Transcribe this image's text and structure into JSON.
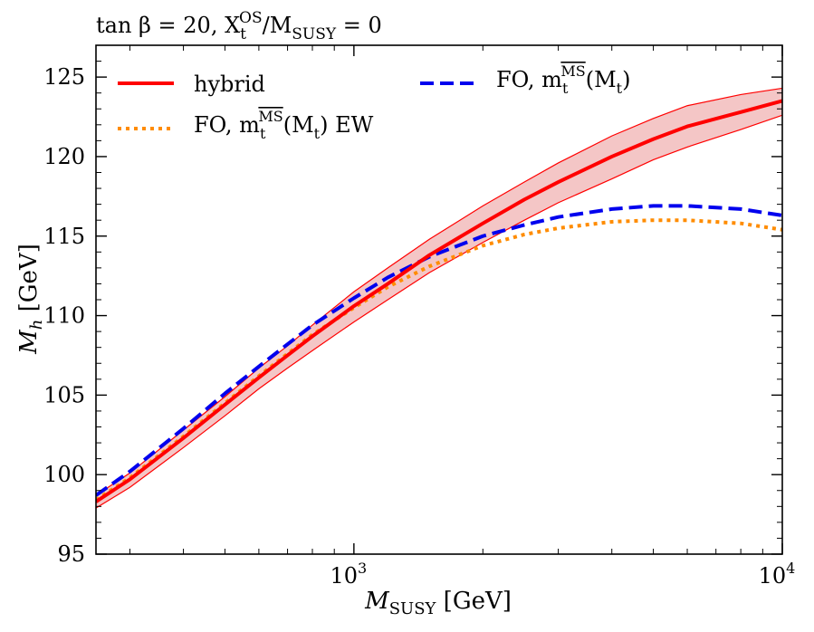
{
  "chart_data": {
    "type": "line",
    "title": "tan β = 20, X",
    "title_sup": "OS",
    "title_sub": "t",
    "title_tail": "/M",
    "title_tail_sub": "SUSY",
    "title_end": " = 0",
    "xlabel": "M",
    "xlabel_sub": "SUSY",
    "xlabel_unit": " [GeV]",
    "ylabel": "M",
    "ylabel_sub": "h",
    "ylabel_unit": " [GeV]",
    "xscale": "log",
    "xlim": [
      250,
      10000
    ],
    "ylim": [
      95,
      127
    ],
    "xticks": [
      {
        "value": 1000,
        "base": "10",
        "exp": "3"
      },
      {
        "value": 10000,
        "base": "10",
        "exp": "4"
      }
    ],
    "yticks": [
      95,
      100,
      105,
      110,
      115,
      120,
      125
    ],
    "grid": false,
    "legend_placement": "top",
    "series": [
      {
        "name": "hybrid",
        "color": "#ff0000",
        "style": "solid",
        "x": [
          250,
          300,
          400,
          500,
          600,
          700,
          800,
          1000,
          1200,
          1500,
          2000,
          2500,
          3000,
          4000,
          5000,
          6000,
          8000,
          10000
        ],
        "y": [
          98.3,
          99.7,
          102.3,
          104.4,
          106.1,
          107.5,
          108.7,
          110.6,
          112.0,
          113.8,
          115.8,
          117.3,
          118.4,
          120.0,
          121.1,
          121.9,
          122.8,
          123.5
        ],
        "band_lower": [
          97.9,
          99.2,
          101.7,
          103.7,
          105.4,
          106.7,
          107.8,
          109.6,
          111.0,
          112.7,
          114.6,
          116.0,
          117.1,
          118.6,
          119.8,
          120.6,
          121.7,
          122.6
        ],
        "band_upper": [
          98.7,
          100.1,
          102.8,
          104.9,
          106.7,
          108.1,
          109.4,
          111.5,
          113.0,
          114.8,
          116.9,
          118.4,
          119.6,
          121.3,
          122.4,
          123.2,
          123.9,
          124.3
        ]
      },
      {
        "name": "FO, m_t^MS(M_t)",
        "color": "#0000ee",
        "style": "dashed",
        "x": [
          250,
          300,
          400,
          500,
          600,
          700,
          800,
          1000,
          1200,
          1500,
          2000,
          2500,
          3000,
          4000,
          5000,
          5500,
          6000,
          8000,
          10000
        ],
        "y": [
          98.7,
          100.2,
          102.9,
          105.1,
          106.8,
          108.2,
          109.4,
          111.1,
          112.4,
          113.7,
          115.0,
          115.7,
          116.2,
          116.7,
          116.9,
          116.9,
          116.9,
          116.7,
          116.3
        ]
      },
      {
        "name": "FO, m_t^MS(M_t) EW",
        "color": "#ff8c00",
        "style": "dotted",
        "x": [
          250,
          300,
          400,
          500,
          600,
          700,
          800,
          1000,
          1200,
          1500,
          2000,
          2500,
          3000,
          4000,
          5000,
          6000,
          8000,
          10000
        ],
        "y": [
          98.4,
          99.8,
          102.4,
          104.5,
          106.2,
          107.6,
          108.8,
          110.5,
          111.8,
          113.1,
          114.4,
          115.1,
          115.5,
          115.9,
          116.0,
          116.0,
          115.8,
          115.4
        ]
      }
    ],
    "legend": [
      {
        "label": "hybrid",
        "color": "#ff0000",
        "style": "solid"
      },
      {
        "label_pre": "FO, m",
        "label_sub": "t",
        "label_sup": "MS",
        "label_post": "(M",
        "label_post_sub": "t",
        "label_end": ")",
        "color": "#0000ee",
        "style": "dashed"
      },
      {
        "label_pre": "FO, m",
        "label_sub": "t",
        "label_sup": "MS",
        "label_post": "(M",
        "label_post_sub": "t",
        "label_end": ") EW",
        "color": "#ff8c00",
        "style": "dotted"
      }
    ]
  }
}
